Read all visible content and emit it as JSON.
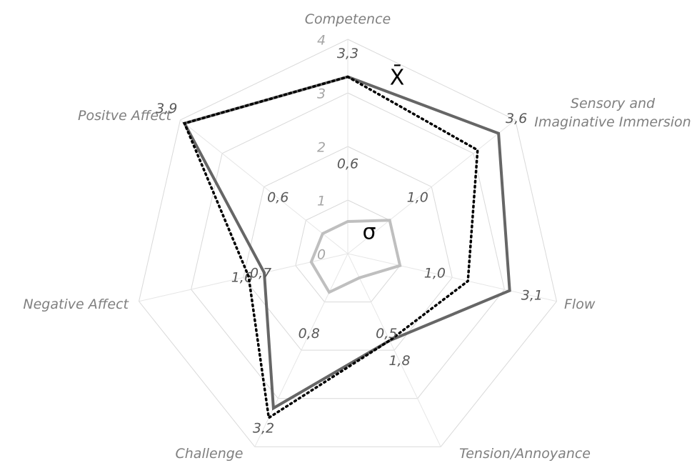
{
  "chart_data": {
    "type": "radar",
    "categories": [
      "Competence",
      "Sensory and\nImaginative Immersion",
      "Flow",
      "Tension/Annoyance",
      "Challenge",
      "Negative Affect",
      "Positve Affect"
    ],
    "ylim": [
      0,
      4
    ],
    "yticks": [
      0,
      1,
      2,
      3,
      4
    ],
    "grid": true,
    "series": [
      {
        "name": "X̄",
        "color": "#666666",
        "style": "solid",
        "values": [
          3.3,
          3.6,
          3.1,
          1.8,
          3.2,
          1.6,
          3.9
        ],
        "value_labels": [
          "3,3",
          "3,6",
          "3,1",
          "1,8",
          "3,2",
          "1,6",
          "3,9"
        ]
      },
      {
        "color": "#000000",
        "style": "dotted",
        "values": [
          3.3,
          3.1,
          2.3,
          1.8,
          3.4,
          1.9,
          3.9
        ]
      },
      {
        "name": "σ",
        "color": "#bfbfbf",
        "style": "solid",
        "values": [
          0.6,
          1.0,
          1.0,
          0.5,
          0.8,
          0.7,
          0.6
        ],
        "value_labels": [
          "0,6",
          "1,0",
          "1,0",
          "0,5",
          "0,8",
          "0,7",
          "0,6"
        ]
      }
    ]
  }
}
